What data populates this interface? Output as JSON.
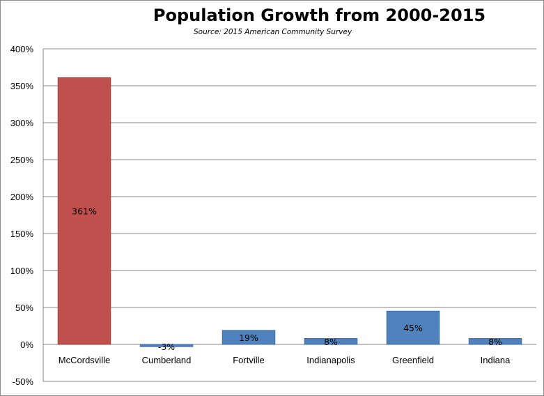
{
  "chart_data": {
    "type": "bar",
    "title": "Population Growth from 2000-2015",
    "subtitle": "Source: 2015 American Community Survey",
    "xlabel": "",
    "ylabel": "",
    "categories": [
      "McCordsville",
      "Cumberland",
      "Fortville",
      "Indianapolis",
      "Greenfield",
      "Indiana"
    ],
    "values": [
      361,
      -3,
      19,
      8,
      45,
      8
    ],
    "data_labels": [
      "361%",
      "-3%",
      "19%",
      "8%",
      "45%",
      "8%"
    ],
    "bar_colors": [
      "#c0504d",
      "#4f81bd",
      "#4f81bd",
      "#4f81bd",
      "#4f81bd",
      "#4f81bd"
    ],
    "ylim": [
      -50,
      400
    ],
    "y_ticks": [
      400,
      350,
      300,
      250,
      200,
      150,
      100,
      50,
      0,
      -50
    ],
    "y_tick_labels": [
      "400%",
      "350%",
      "300%",
      "250%",
      "200%",
      "150%",
      "100%",
      "50%",
      "0%",
      "-50%"
    ],
    "grid": true,
    "legend": "none"
  }
}
